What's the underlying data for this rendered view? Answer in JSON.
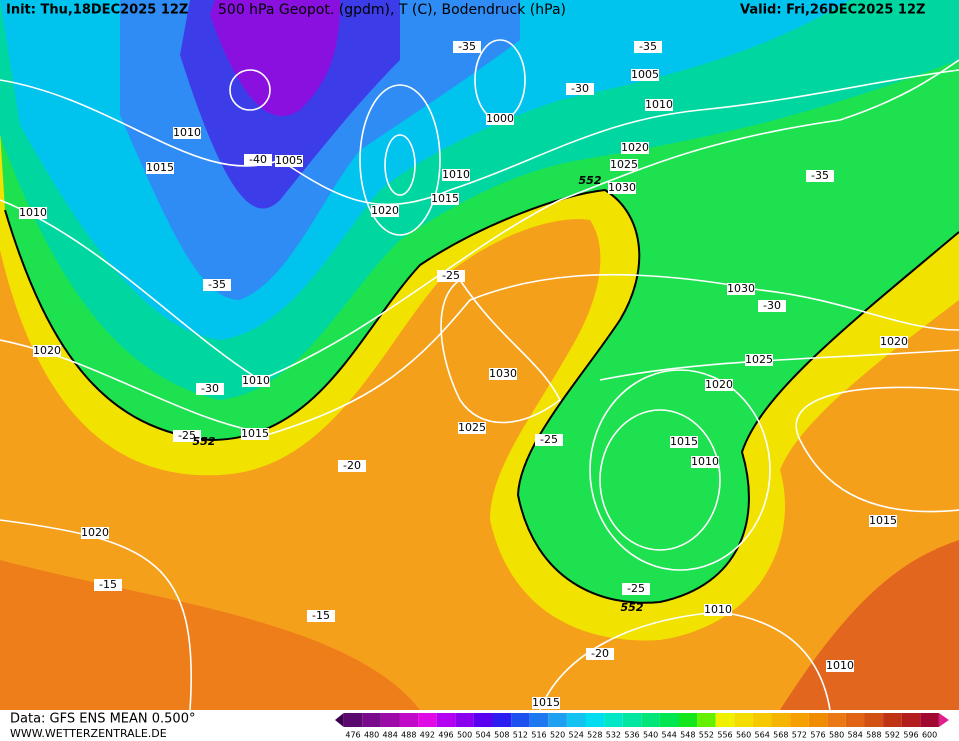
{
  "header": {
    "init": "Init: Thu,18DEC2025 12Z",
    "title": "500 hPa Geopot. (gpdm), T (C), Bodendruck (hPa)",
    "valid": "Valid: Fri,26DEC2025 12Z"
  },
  "footer": {
    "data": "Data: GFS ENS MEAN 0.500°",
    "site": "WWW.WETTERZENTRALE.DE"
  },
  "pressure_labels": [
    1010,
    1015,
    1010,
    1005,
    1010,
    1020,
    1015,
    1000,
    1005,
    1010,
    1020,
    1025,
    1030,
    1020,
    1010,
    1015,
    1030,
    1025,
    1030,
    1025,
    1020,
    1020,
    1015,
    1010,
    1020,
    1010,
    1015,
    1010,
    1015
  ],
  "temperature_labels": [
    -35,
    -35,
    -30,
    -40,
    -35,
    -35,
    -25,
    -30,
    -30,
    -25,
    -25,
    -20,
    -15,
    -15,
    -25,
    -20
  ],
  "height_labels": [
    552,
    552,
    552
  ],
  "colorbar": {
    "levels": [
      476,
      480,
      484,
      488,
      492,
      496,
      500,
      504,
      508,
      512,
      516,
      520,
      524,
      528,
      532,
      536,
      540,
      544,
      548,
      552,
      556,
      560,
      564,
      568,
      572,
      576,
      580,
      584,
      588,
      592,
      596,
      600
    ],
    "colors": [
      "#5a0a6e",
      "#7a0a8c",
      "#9c0aa8",
      "#c00ac8",
      "#e00ae6",
      "#b400f0",
      "#8c00f0",
      "#5a00f0",
      "#2c1ef0",
      "#1e50f0",
      "#1e78f0",
      "#1ea0f0",
      "#14c3f0",
      "#00dcf0",
      "#00e6c8",
      "#00e6a0",
      "#00e678",
      "#00e650",
      "#14e61e",
      "#64f000",
      "#f0f000",
      "#f5dc00",
      "#f5c800",
      "#f5b400",
      "#f5a000",
      "#f08c00",
      "#eb7814",
      "#e06414",
      "#d25014",
      "#c03214",
      "#b41e1e",
      "#a00a32"
    ]
  }
}
